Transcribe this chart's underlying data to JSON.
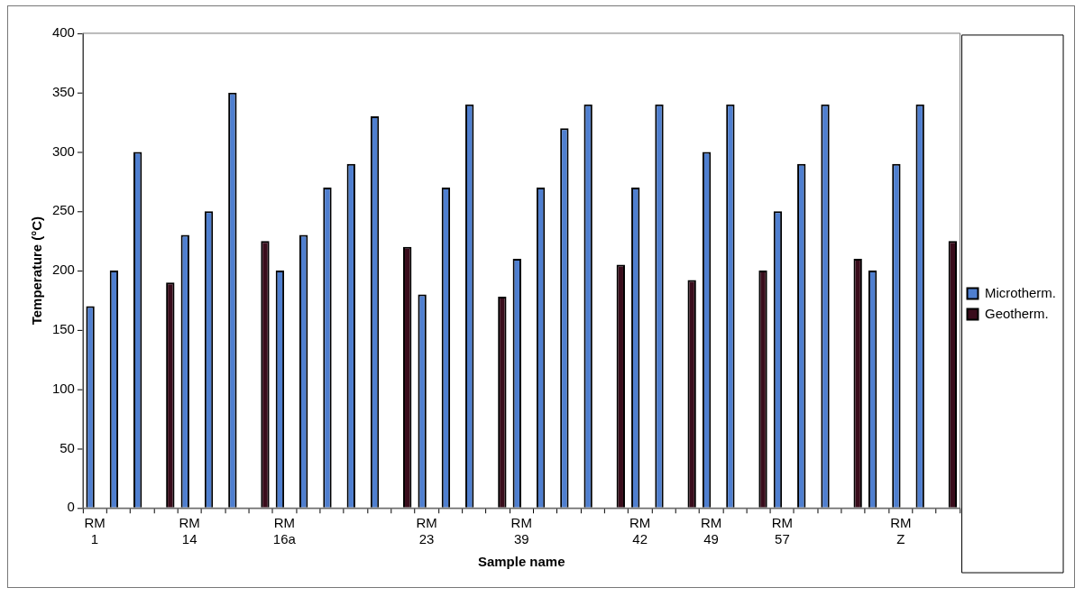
{
  "chart_data": {
    "type": "bar",
    "xlabel": "Sample name",
    "ylabel": "Temperature (°C)",
    "categories": [
      "RM 1",
      null,
      null,
      null,
      "RM 14",
      null,
      null,
      null,
      "RM 16a",
      null,
      null,
      null,
      null,
      null,
      "RM 23",
      null,
      null,
      null,
      "RM 39",
      null,
      null,
      null,
      null,
      "RM 42",
      null,
      null,
      "RM 49",
      null,
      null,
      "RM 57",
      null,
      null,
      null,
      null,
      "RM Z",
      null,
      null
    ],
    "series": [
      {
        "name": "Microtherm.",
        "color": "#4f7fd0",
        "values": [
          170,
          200,
          300,
          null,
          230,
          250,
          350,
          null,
          200,
          230,
          270,
          290,
          330,
          null,
          180,
          270,
          340,
          null,
          210,
          270,
          320,
          340,
          null,
          270,
          340,
          null,
          300,
          340,
          null,
          250,
          290,
          340,
          null,
          200,
          290,
          340,
          null
        ]
      },
      {
        "name": "Geotherm.",
        "color": "#3a0d1c",
        "values": [
          null,
          null,
          null,
          190,
          null,
          null,
          null,
          225,
          null,
          null,
          null,
          null,
          null,
          220,
          null,
          null,
          null,
          178,
          null,
          null,
          null,
          null,
          205,
          null,
          null,
          192,
          null,
          null,
          200,
          null,
          null,
          null,
          210,
          null,
          null,
          null,
          225
        ]
      }
    ],
    "ylim": [
      0,
      400
    ],
    "yticks": [
      0,
      50,
      100,
      150,
      200,
      250,
      300,
      350,
      400
    ],
    "grid": false,
    "legend": "right"
  }
}
